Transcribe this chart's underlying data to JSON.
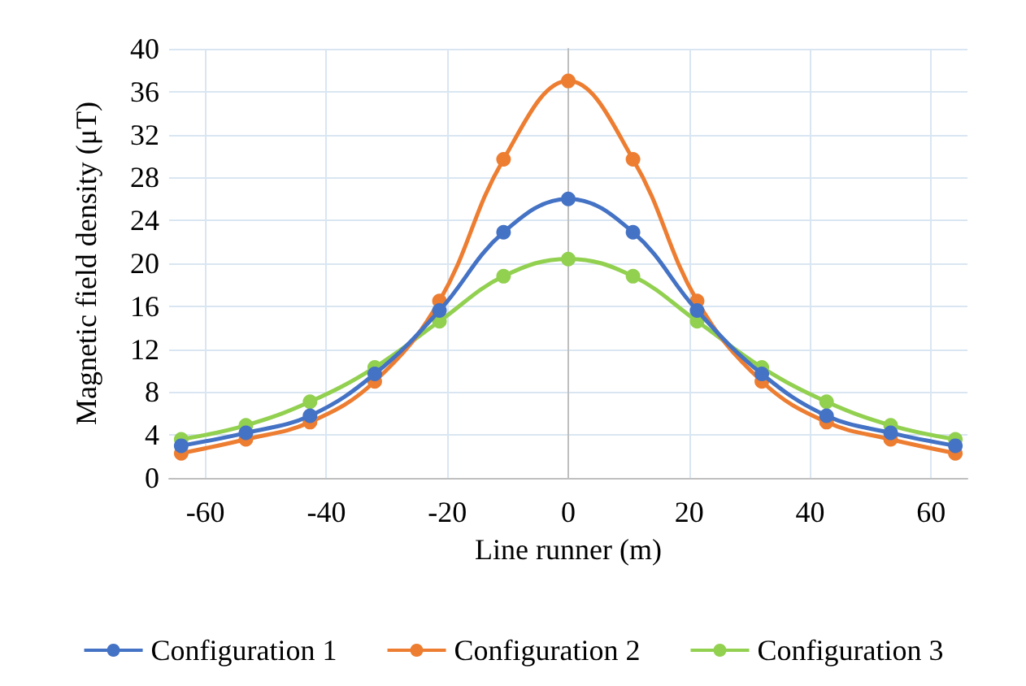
{
  "chart_data": {
    "type": "line",
    "xlabel": "Line runner (m)",
    "ylabel": "Magnetic field density (μT)",
    "x": [
      -64,
      -53.3,
      -42.7,
      -32,
      -21.3,
      -10.7,
      0,
      10.7,
      21.3,
      32,
      42.7,
      53.3,
      64
    ],
    "series": [
      {
        "name": "Configuration 1",
        "color": "#4472c4",
        "values": [
          3.0,
          4.2,
          5.8,
          9.7,
          15.6,
          22.9,
          26,
          22.9,
          15.6,
          9.7,
          5.8,
          4.2,
          3.0
        ]
      },
      {
        "name": "Configuration 2",
        "color": "#ed7d31",
        "values": [
          2.3,
          3.6,
          5.2,
          9.0,
          16.5,
          29.7,
          37,
          29.7,
          16.5,
          9.0,
          5.2,
          3.6,
          2.3
        ]
      },
      {
        "name": "Configuration 3",
        "color": "#92d050",
        "values": [
          3.6,
          4.9,
          7.1,
          10.3,
          14.6,
          18.8,
          20.4,
          18.8,
          14.6,
          10.3,
          7.1,
          4.9,
          3.6
        ]
      }
    ],
    "xlim": [
      -66,
      66
    ],
    "xticks": [
      -60,
      -40,
      -20,
      0,
      20,
      40,
      60
    ],
    "ylim": [
      0,
      40
    ],
    "yticks": [
      0,
      4,
      8,
      12,
      16,
      20,
      24,
      28,
      32,
      36,
      40
    ],
    "grid": true,
    "legend": "bottom",
    "marker": "circle",
    "line_style": "solid"
  }
}
